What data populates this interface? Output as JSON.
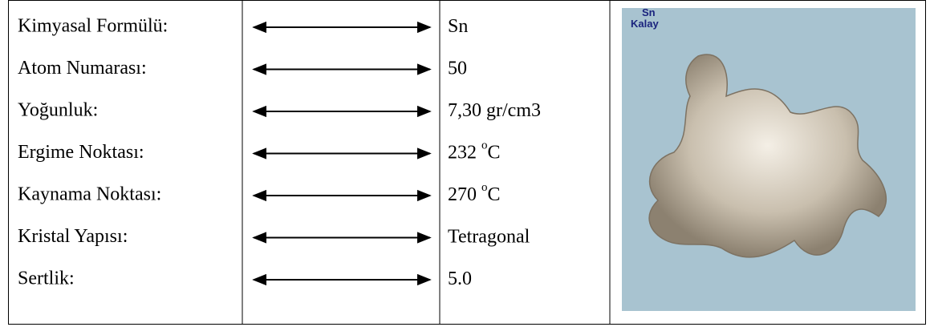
{
  "rows": [
    {
      "label": "Kimyasal Formülü:",
      "value": "Sn"
    },
    {
      "label": "Atom Numarası:",
      "value": "50"
    },
    {
      "label": "Yoğunluk:",
      "value": "7,30 gr/cm3"
    },
    {
      "label": "Ergime Noktası:",
      "value": "232",
      "sup": "o",
      "suffix": "C"
    },
    {
      "label": "Kaynama Noktası:",
      "value": "270",
      "sup": "o",
      "suffix": "C"
    },
    {
      "label": "Kristal Yapısı:",
      "value": "Tetragonal"
    },
    {
      "label": "Sertlik:",
      "value": "5.0"
    }
  ],
  "image": {
    "symbol": "Sn",
    "name": "Kalay"
  }
}
